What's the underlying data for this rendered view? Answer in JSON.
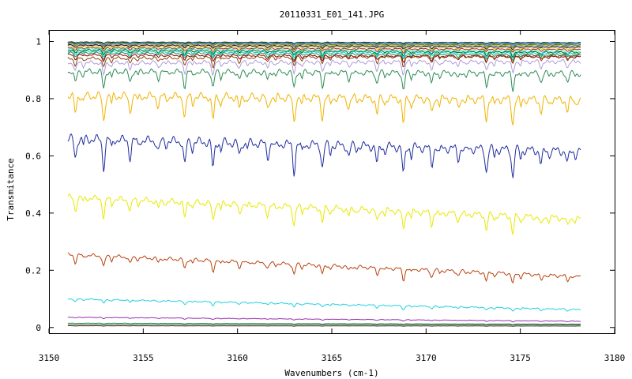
{
  "chart_data": {
    "type": "line",
    "title": "20110331_E01_141.JPG",
    "xlabel": "Wavenumbers (cm-1)",
    "ylabel": "Transmitance",
    "xlim": [
      3150,
      3180
    ],
    "ylim": [
      -0.02,
      1.04
    ],
    "x_range": [
      3151,
      3178.2
    ],
    "xticks": [
      3150,
      3155,
      3160,
      3165,
      3170,
      3175,
      3180
    ],
    "yticks": [
      0,
      0.2,
      0.4,
      0.6,
      0.8,
      1
    ],
    "ytick_labels": [
      "0",
      "0.2",
      "0.4",
      "0.6",
      "0.8",
      "1"
    ],
    "xtick_labels": [
      "3150",
      "3155",
      "3160",
      "3165",
      "3170",
      "3175",
      "3180"
    ],
    "grid": false,
    "legend": "none",
    "line_centers": [
      3151.4,
      3152.9,
      3154.3,
      3155.8,
      3157.2,
      3158.7,
      3160.1,
      3161.6,
      3163.0,
      3164.5,
      3165.9,
      3167.4,
      3168.8,
      3170.3,
      3171.7,
      3173.2,
      3174.6,
      3176.1,
      3177.5
    ],
    "series": [
      {
        "color": "#000000",
        "start": 0.998,
        "end": 0.996,
        "depth": 0.004
      },
      {
        "color": "#006400",
        "start": 0.997,
        "end": 0.995,
        "depth": 0.005
      },
      {
        "color": "#8b4513",
        "start": 0.996,
        "end": 0.994,
        "depth": 0.006
      },
      {
        "color": "#00bfff",
        "start": 0.995,
        "end": 0.993,
        "depth": 0.006
      },
      {
        "color": "#9370db",
        "start": 0.994,
        "end": 0.991,
        "depth": 0.007
      },
      {
        "color": "#228b22",
        "start": 0.992,
        "end": 0.988,
        "depth": 0.008
      },
      {
        "color": "#daa520",
        "start": 0.99,
        "end": 0.985,
        "depth": 0.009
      },
      {
        "color": "#00008b",
        "start": 0.987,
        "end": 0.981,
        "depth": 0.01
      },
      {
        "color": "#cccc00",
        "start": 0.983,
        "end": 0.977,
        "depth": 0.011
      },
      {
        "color": "#b22222",
        "start": 0.978,
        "end": 0.972,
        "depth": 0.012
      },
      {
        "color": "#40e0d0",
        "start": 0.975,
        "end": 0.966,
        "depth": 0.014
      },
      {
        "color": "#006400",
        "start": 0.97,
        "end": 0.962,
        "depth": 0.015
      },
      {
        "color": "#00ced1",
        "start": 0.965,
        "end": 0.958,
        "depth": 0.016
      },
      {
        "color": "#2e8b57",
        "start": 0.96,
        "end": 0.952,
        "depth": 0.018
      },
      {
        "color": "#8b0000",
        "start": 0.953,
        "end": 0.946,
        "depth": 0.02
      },
      {
        "color": "#8b4513",
        "start": 0.94,
        "end": 0.951,
        "depth": 0.03
      },
      {
        "color": "#b19cd9",
        "start": 0.925,
        "end": 0.93,
        "depth": 0.04
      },
      {
        "color": "#2e8b57",
        "start": 0.895,
        "end": 0.888,
        "depth": 0.055
      },
      {
        "color": "#f0b400",
        "start": 0.81,
        "end": 0.795,
        "depth": 0.08
      },
      {
        "color": "#1f2d9e",
        "start": 0.66,
        "end": 0.615,
        "depth": 0.09
      },
      {
        "color": "#e8e800",
        "start": 0.455,
        "end": 0.38,
        "depth": 0.06
      },
      {
        "color": "#b8420f",
        "start": 0.255,
        "end": 0.178,
        "depth": 0.035
      },
      {
        "color": "#20d0e0",
        "start": 0.1,
        "end": 0.063,
        "depth": 0.012
      },
      {
        "color": "#9b30b0",
        "start": 0.036,
        "end": 0.022,
        "depth": 0.004
      },
      {
        "color": "#2e8b57",
        "start": 0.015,
        "end": 0.012,
        "depth": 0.002
      },
      {
        "color": "#556b2f",
        "start": 0.01,
        "end": 0.009,
        "depth": 0.001
      },
      {
        "color": "#444444",
        "start": 0.006,
        "end": 0.005,
        "depth": 0.001
      }
    ]
  }
}
